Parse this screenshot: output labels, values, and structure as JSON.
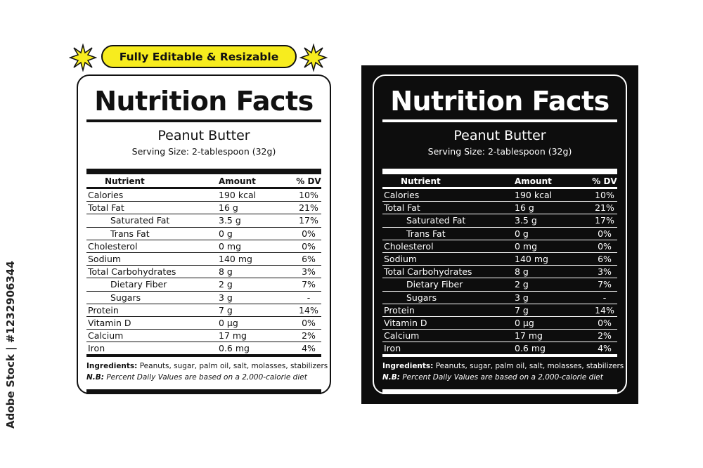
{
  "badge": {
    "text": "Fully Editable & Resizable",
    "color": "#f7ec1e"
  },
  "label": {
    "title": "Nutrition Facts",
    "product": "Peanut Butter",
    "serving": "Serving Size:  2-tablespoon (32g)",
    "columns": {
      "nutrient": "Nutrient",
      "amount": "Amount",
      "dv": "% DV"
    },
    "rows": [
      {
        "nutrient": "Calories",
        "amount": "190 kcal",
        "dv": "10%",
        "indent": false
      },
      {
        "nutrient": "Total Fat",
        "amount": "16 g",
        "dv": "21%",
        "indent": false
      },
      {
        "nutrient": "Saturated Fat",
        "amount": "3.5 g",
        "dv": "17%",
        "indent": true
      },
      {
        "nutrient": "Trans Fat",
        "amount": "0 g",
        "dv": "0%",
        "indent": true
      },
      {
        "nutrient": "Cholesterol",
        "amount": "0 mg",
        "dv": "0%",
        "indent": false
      },
      {
        "nutrient": "Sodium",
        "amount": "140 mg",
        "dv": "6%",
        "indent": false
      },
      {
        "nutrient": "Total Carbohydrates",
        "amount": "8 g",
        "dv": "3%",
        "indent": false
      },
      {
        "nutrient": "Dietary Fiber",
        "amount": "2 g",
        "dv": "7%",
        "indent": true
      },
      {
        "nutrient": "Sugars",
        "amount": "3 g",
        "dv": "-",
        "indent": true
      },
      {
        "nutrient": "Protein",
        "amount": "7 g",
        "dv": "14%",
        "indent": false
      },
      {
        "nutrient": "Vitamin D",
        "amount": "0 µg",
        "dv": "0%",
        "indent": false
      },
      {
        "nutrient": "Calcium",
        "amount": "17 mg",
        "dv": "2%",
        "indent": false
      },
      {
        "nutrient": "Iron",
        "amount": "0.6 mg",
        "dv": "4%",
        "indent": false
      }
    ],
    "ingredients_label": "Ingredients:",
    "ingredients": " Peanuts, sugar, palm oil, salt, molasses, stabilizers",
    "note_label": "N.B:",
    "note": " Percent Daily Values are based on a 2,000-calorie diet"
  },
  "side_watermark": "Adobe Stock | #1232906344"
}
